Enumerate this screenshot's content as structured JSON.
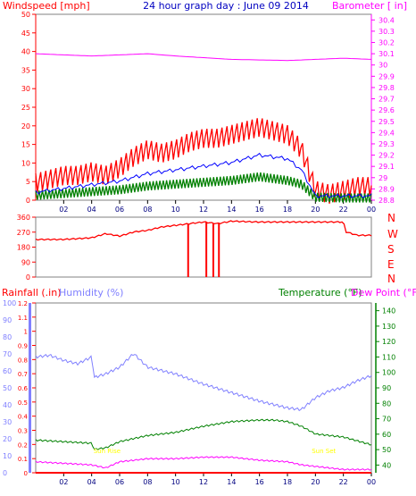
{
  "header": {
    "left_label": "Windspeed [mph]",
    "center_title": "24 hour graph day : June 09 2014",
    "right_label": "Barometer [ in]"
  },
  "middle": {
    "letters": [
      "N",
      "W",
      "S",
      "E",
      "N"
    ]
  },
  "bottom_header": {
    "rainfall": "Rainfall (.in)",
    "humidity": "Humidity (%)",
    "temperature": "Temperature (°F)",
    "dewpoint": "Dew Point (°F)"
  },
  "colors": {
    "wind": "#ff0000",
    "gust_avg": "#0000ff",
    "wind_green": "#008000",
    "barometer": "#ff00ff",
    "humidity": "#8080ff",
    "temperature": "#008000",
    "dewpoint": "#ff00ff",
    "rain": "#ff0000",
    "sun_label": "#ffff00"
  },
  "chart_data": [
    {
      "type": "line",
      "name": "wind-barometer",
      "x_ticks": [
        "02",
        "04",
        "06",
        "08",
        "10",
        "12",
        "14",
        "16",
        "18",
        "20",
        "22",
        "00"
      ],
      "y_left_ticks": [
        "0",
        "5",
        "10",
        "15",
        "20",
        "25",
        "30",
        "35",
        "40",
        "45",
        "50"
      ],
      "y_right_ticks": [
        "28.8",
        "28.9",
        "29",
        "29.1",
        "29.2",
        "29.3",
        "29.4",
        "29.5",
        "29.6",
        "29.7",
        "29.8",
        "29.9",
        "30",
        "30.1",
        "30.2",
        "30.3",
        "30.4"
      ],
      "ylim_left": [
        0,
        50
      ],
      "ylim_right": [
        28.8,
        30.45
      ],
      "series": [
        {
          "key": "gust",
          "hours": [
            0,
            1,
            2,
            3,
            4,
            5,
            6,
            7,
            8,
            9,
            10,
            11,
            12,
            13,
            14,
            15,
            16,
            17,
            18,
            19,
            20,
            21,
            22,
            23,
            24
          ],
          "values": [
            4,
            5,
            6,
            6,
            7,
            6,
            8,
            11,
            13,
            12,
            13,
            15,
            16,
            16,
            17,
            18,
            19,
            18,
            17,
            13,
            2,
            1,
            2,
            3,
            3
          ]
        },
        {
          "key": "average",
          "hours": [
            0,
            2,
            4,
            6,
            8,
            10,
            12,
            14,
            16,
            18,
            19,
            20,
            22,
            24
          ],
          "values": [
            2,
            3,
            4,
            5,
            7,
            8,
            9,
            10,
            12,
            11,
            8,
            1,
            1,
            1
          ]
        },
        {
          "key": "speed",
          "hours": [
            0,
            2,
            4,
            6,
            8,
            10,
            12,
            14,
            16,
            18,
            19,
            20,
            22,
            24
          ],
          "values": [
            1,
            1.5,
            2,
            2.5,
            3.5,
            4,
            4.5,
            5,
            6,
            5,
            4,
            0.5,
            0.3,
            0.3
          ]
        },
        {
          "key": "barometer",
          "hours": [
            0,
            4,
            8,
            10,
            14,
            18,
            22,
            24
          ],
          "values": [
            30.1,
            30.08,
            30.1,
            30.08,
            30.05,
            30.04,
            30.06,
            30.05
          ]
        }
      ]
    },
    {
      "type": "line",
      "name": "wind-direction",
      "y_ticks": [
        "0",
        "90",
        "180",
        "270",
        "360"
      ],
      "ylim": [
        0,
        360
      ],
      "series": [
        {
          "key": "direction",
          "hours": [
            0,
            2,
            4,
            5,
            6,
            7,
            8,
            9,
            10,
            11,
            12,
            13,
            14,
            16,
            18,
            20,
            22,
            22.2,
            23,
            24
          ],
          "values": [
            225,
            225,
            235,
            260,
            245,
            270,
            280,
            300,
            310,
            320,
            330,
            320,
            335,
            330,
            330,
            330,
            330,
            270,
            250,
            250
          ]
        },
        {
          "key": "direction_drops",
          "hours": [
            10.9,
            12.2,
            12.7,
            13.1
          ],
          "values": [
            0,
            0,
            0,
            0
          ]
        }
      ]
    },
    {
      "type": "line",
      "name": "rain-humidity-temperature",
      "y_humidity_ticks": [
        "0",
        "10",
        "20",
        "30",
        "40",
        "50",
        "60",
        "70",
        "80",
        "90",
        "100"
      ],
      "y_rain_ticks": [
        "0",
        "0.1",
        "0.2",
        "0.3",
        "0.4",
        "0.5",
        "0.6",
        "0.7",
        "0.8",
        "0.9",
        "1",
        "1.1",
        "1.2"
      ],
      "y_temp_ticks": [
        "40",
        "50",
        "60",
        "70",
        "80",
        "90",
        "100",
        "110",
        "120",
        "130",
        "140"
      ],
      "ylim_humidity": [
        0,
        100
      ],
      "ylim_rain": [
        0,
        1.2
      ],
      "ylim_temp": [
        35,
        145
      ],
      "sun_labels": [
        {
          "text": "Sun Rise",
          "hour": 5.1
        },
        {
          "text": "Sun Set",
          "hour": 20.6
        }
      ],
      "series": [
        {
          "key": "humidity",
          "hours": [
            0,
            1,
            2,
            3,
            4,
            4.2,
            5,
            6,
            7,
            8,
            10,
            12,
            14,
            16,
            18,
            19,
            20,
            21,
            22,
            23,
            24
          ],
          "values": [
            68,
            69,
            66,
            64,
            68,
            56,
            58,
            62,
            70,
            62,
            58,
            52,
            47,
            42,
            38,
            37,
            44,
            48,
            50,
            54,
            57
          ]
        },
        {
          "key": "temperature",
          "hours": [
            0,
            2,
            4,
            4.2,
            5,
            6,
            8,
            10,
            12,
            14,
            16,
            17,
            18,
            19,
            20,
            22,
            24
          ],
          "values": [
            56,
            55,
            54,
            50,
            51,
            55,
            59,
            61,
            65,
            68,
            69,
            69,
            68,
            65,
            60,
            58,
            53
          ]
        },
        {
          "key": "dewpoint",
          "hours": [
            0,
            2,
            4,
            5,
            6,
            8,
            10,
            12,
            14,
            16,
            18,
            19,
            20,
            22,
            24
          ],
          "values": [
            42,
            41,
            40,
            38,
            42,
            44,
            44,
            45,
            45,
            43,
            42,
            40,
            39,
            37,
            37
          ]
        },
        {
          "key": "rainfall",
          "hours": [
            0,
            24
          ],
          "values": [
            0,
            0
          ]
        }
      ]
    }
  ]
}
